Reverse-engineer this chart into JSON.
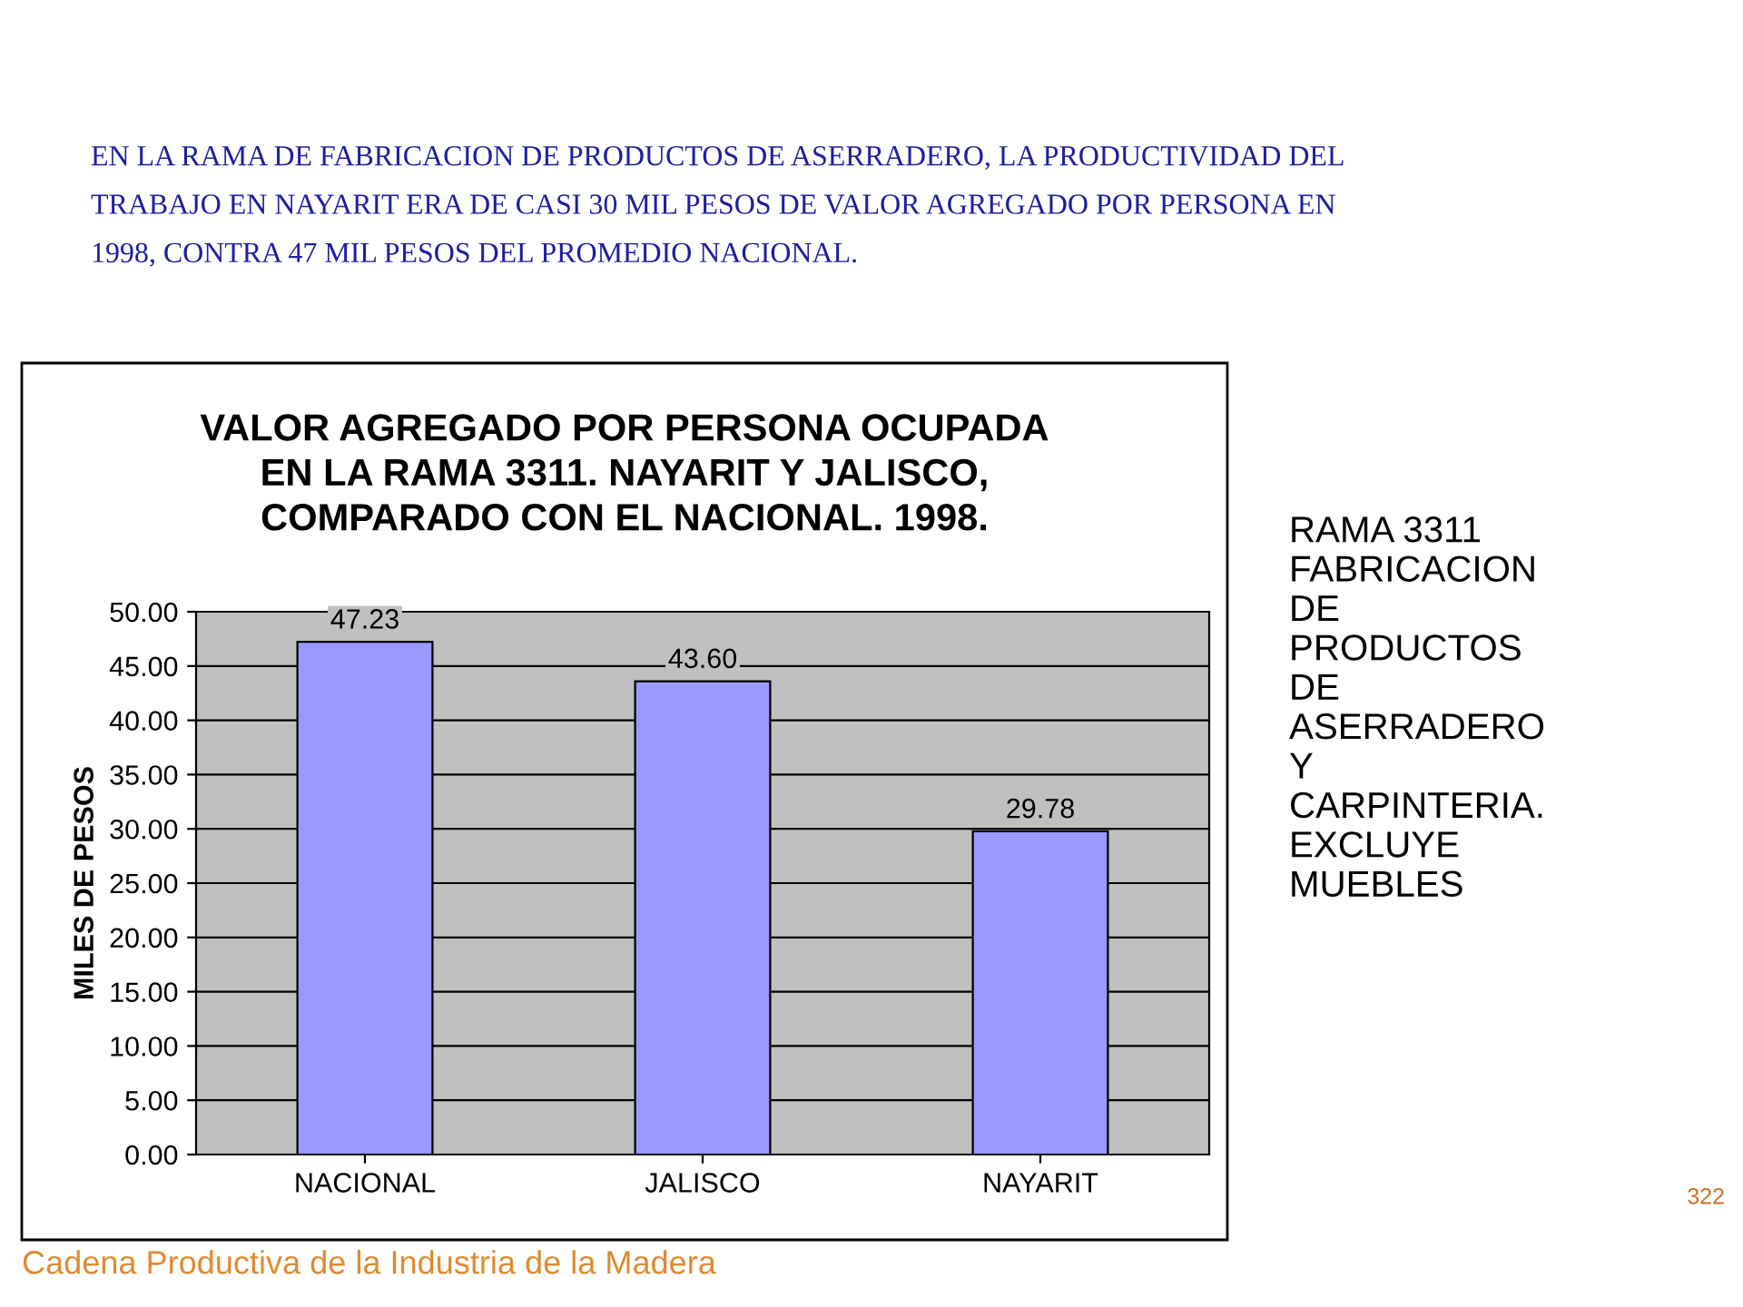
{
  "chart_data": {
    "type": "bar",
    "title": "VALOR AGREGADO POR PERSONA OCUPADA\nEN LA RAMA 3311. NAYARIT Y JALISCO,\nCOMPARADO CON EL NACIONAL. 1998.",
    "ylabel": "MILES DE PESOS",
    "categories": [
      "NACIONAL",
      "JALISCO",
      "NAYARIT"
    ],
    "values": [
      47.23,
      43.6,
      29.78
    ],
    "value_labels": [
      "47.23",
      "43.60",
      "29.78"
    ],
    "color": "#9999ff",
    "ylim": [
      0,
      50
    ],
    "yticks": [
      {
        "value": 0,
        "label": "0.00"
      },
      {
        "value": 5,
        "label": "5.00"
      },
      {
        "value": 10,
        "label": "10.00"
      },
      {
        "value": 15,
        "label": "15.00"
      },
      {
        "value": 20,
        "label": "20.00"
      },
      {
        "value": 25,
        "label": "25.00"
      },
      {
        "value": 30,
        "label": "30.00"
      },
      {
        "value": 35,
        "label": "35.00"
      },
      {
        "value": 40,
        "label": "40.00"
      },
      {
        "value": 45,
        "label": "45.00"
      },
      {
        "value": 50,
        "label": "50.00"
      }
    ],
    "grid": "y",
    "annotations": [
      "EN LA RAMA DE FABRICACION DE PRODUCTOS DE ASERRADERO, LA PRODUCTIVIDAD DEL\nTRABAJO EN NAYARIT ERA DE CASI 30 MIL PESOS DE VALOR AGREGADO POR PERSONA EN\n1998, CONTRA 47 MIL PESOS DEL PROMEDIO NACIONAL.",
      "RAMA 3311\nFABRICACION\nDE\nPRODUCTOS\nDE\nASERRADERO\nY\nCARPINTERIA.\nEXCLUYE\nMUEBLES",
      "322",
      "Cadena Productiva de la Industria de la Madera"
    ]
  }
}
